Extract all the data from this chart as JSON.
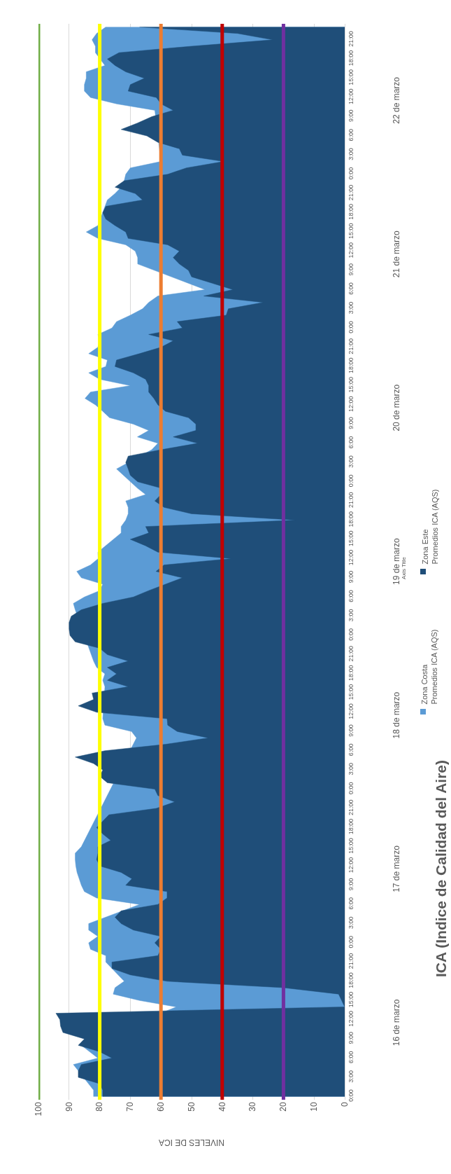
{
  "chart_data": {
    "type": "area",
    "orientation": "horizontal",
    "title": "ICA (Indice de Calidad del Aire)",
    "xlabel": "NIVELES DE ICA",
    "annotations": [
      "16 de marzo",
      "17 de marzo",
      "18 de marzo",
      "19 de marzo",
      "20 de marzo",
      "21 de marzo",
      "22 de marzo",
      {
        "text": "Axis Title"
      }
    ],
    "categories": [
      null,
      null,
      "21:00",
      null,
      null,
      "18:00",
      null,
      null,
      "15:00",
      null,
      null,
      "12:00",
      null,
      null,
      "9:00",
      null,
      null,
      "6:00",
      null,
      null,
      "3:00",
      null,
      null,
      "0:00",
      null,
      null,
      "21:00",
      null,
      null,
      "18:00",
      null,
      null,
      "15:00",
      null,
      null,
      "12:00",
      null,
      null,
      "9:00",
      null,
      null,
      "6:00",
      null,
      null,
      "3:00",
      null,
      null,
      "0:00",
      null,
      null,
      "21:00",
      null,
      null,
      "18:00",
      null,
      null,
      "15:00",
      null,
      null,
      "12:00",
      null,
      null,
      "9:00",
      null,
      null,
      "6:00",
      null,
      null,
      "3:00",
      null,
      null,
      "0:00",
      null,
      null,
      "21:00",
      null,
      null,
      "18:00",
      null,
      null,
      "15:00",
      null,
      null,
      "12:00",
      null,
      null,
      "9:00",
      null,
      null,
      "6:00",
      null,
      null,
      "3:00",
      null,
      null,
      "0:00",
      null,
      null,
      "21:00",
      null,
      null,
      "18:00",
      null,
      null,
      "15:00",
      null,
      null,
      "12:00",
      null,
      null,
      "9:00",
      null,
      null,
      "6:00",
      null,
      null,
      "3:00",
      null,
      null,
      "0:00",
      null,
      null,
      "21:00",
      null,
      null,
      "18:00",
      null,
      null,
      "15:00",
      null,
      null,
      "12:00",
      null,
      null,
      "9:00",
      null,
      null,
      "6:00",
      null,
      null,
      "3:00",
      null,
      null,
      "0:00",
      null,
      null,
      "21:00",
      null,
      null,
      "18:00",
      null,
      null,
      "15:00",
      null,
      null,
      "12:00",
      null,
      null,
      "9:00",
      null,
      null,
      "6:00",
      null,
      null,
      "3:00",
      null,
      null,
      "0:00"
    ],
    "series": [
      {
        "name": "Zona Costa\nPromedios ICA (AQS)",
        "color": "#5b9bd5",
        "values": [
          78,
          81,
          82.5,
          81.4,
          81.4,
          null,
          78.3,
          84.4,
          84.4,
          85,
          85,
          83,
          74.5,
          62,
          null,
          null,
          null,
          null,
          null,
          null,
          null,
          60,
          70,
          71.5,
          72,
          73,
          75,
          77.5,
          null,
          null,
          null,
          80.6,
          84.4,
          80.6,
          71.5,
          68.4,
          67.6,
          67.6,
          null,
          null,
          null,
          45.6,
          61,
          64,
          66,
          70,
          74.5,
          76,
          80.6,
          80,
          80.6,
          83.6,
          77.5,
          78,
          83.6,
          80,
          70,
          83,
          84.8,
          81.4,
          79,
          76.8,
          69,
          64,
          67.7,
          61,
          63,
          null,
          null,
          74.5,
          null,
          null,
          67.7,
          65,
          71.5,
          70.7,
          70.7,
          71.5,
          73,
          73,
          null,
          null,
          80.6,
          80.5,
          83,
          87.5,
          86,
          79,
          80,
          85,
          88.6,
          88,
          null,
          null,
          null,
          null,
          null,
          null,
          null,
          82,
          81,
          78.3,
          79,
          78.3,
          null,
          null,
          null,
          null,
          79,
          78.3,
          69.6,
          68,
          null,
          null,
          null,
          null,
          null,
          null,
          null,
          null,
          null,
          null,
          null,
          null,
          null,
          null,
          null,
          null,
          86,
          88,
          88,
          87.8,
          87.4,
          86.7,
          86,
          85,
          81,
          67,
          null,
          null,
          83.6,
          83.6,
          80.6,
          83.6,
          83,
          78,
          78,
          null,
          null,
          72,
          75,
          75.6,
          67,
          55,
          null,
          null,
          null,
          null,
          null,
          86,
          null,
          80.6,
          88.6,
          null,
          null,
          null,
          82,
          82
        ]
      },
      {
        "name": "Zona Este\nPromedios ICA (AQS)",
        "color": "#1f4e79",
        "values": [
          67,
          35,
          23.5,
          50,
          73.7,
          77.5,
          75,
          71.5,
          65.4,
          70,
          70.7,
          61.5,
          60,
          56,
          63,
          67.7,
          73,
          64.6,
          61,
          54,
          53,
          39.5,
          51.7,
          57.8,
          72,
          75,
          68.4,
          66,
          78,
          79,
          78,
          75,
          71.5,
          70.7,
          57.8,
          54,
          56,
          54,
          51,
          50,
          43.3,
          36.5,
          46,
          26.6,
          38,
          38.7,
          54.7,
          53,
          64,
          56,
          60,
          67,
          74.5,
          75,
          69,
          65,
          64,
          64,
          62.3,
          61,
          58.5,
          51,
          48.6,
          48.6,
          56,
          48,
          60,
          70.7,
          71.5,
          70.7,
          70,
          67.6,
          60,
          60,
          62,
          59,
          50,
          16,
          65,
          64,
          70,
          65,
          61,
          37,
          59,
          61.6,
          53,
          58.5,
          64,
          69,
          79,
          86,
          89.3,
          90,
          90,
          89.7,
          88,
          80,
          77.5,
          70.7,
          77.5,
          74.5,
          77.5,
          70.7,
          82.5,
          82,
          87,
          81,
          58,
          57.8,
          54.7,
          44.5,
          58.5,
          78.3,
          88,
          82,
          79,
          80,
          77.5,
          62,
          61,
          55.5,
          61.5,
          77,
          79,
          81,
          79,
          76.4,
          80.6,
          80.6,
          81,
          80,
          73,
          69.5,
          71.5,
          58,
          58,
          61,
          73,
          75,
          73,
          69,
          60,
          62,
          60,
          61,
          76,
          76,
          70,
          58,
          20,
          2,
          1,
          0,
          94.3,
          93,
          92.8,
          92,
          85,
          87,
          80,
          76,
          86,
          87,
          87,
          80,
          79,
          79
        ]
      }
    ],
    "xlim": [
      100,
      0
    ],
    "xticks": [
      0,
      10,
      20,
      30,
      40,
      50,
      60,
      70,
      80,
      90,
      100
    ],
    "grid": "x",
    "legend": "right",
    "ref_lines": [
      {
        "axis": "x",
        "value": 100,
        "color": "#70ad47"
      },
      {
        "axis": "x",
        "value": 80,
        "color": "#ffff00"
      },
      {
        "axis": "x",
        "value": 60,
        "color": "#ed7d31"
      },
      {
        "axis": "x",
        "value": 40,
        "color": "#c00000"
      },
      {
        "axis": "x",
        "value": 20,
        "color": "#7030a0"
      }
    ]
  }
}
